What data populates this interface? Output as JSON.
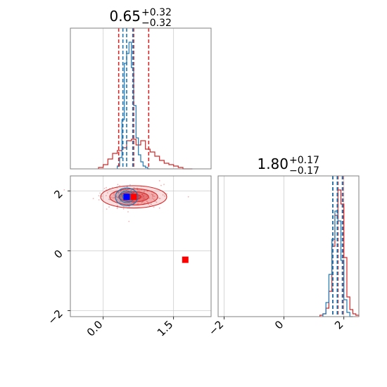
{
  "chart_data": [
    {
      "type": "histogram",
      "panel": "marginal-param-1",
      "title_value": "0.65",
      "title_plus": "+0.32",
      "title_minus": "−0.32",
      "xlim": [
        -0.7,
        2.3
      ],
      "ylim": [
        0,
        1.0
      ],
      "grid": true,
      "series": [
        {
          "color": "#d62728",
          "bins_x": [
            -0.1,
            0.0,
            0.1,
            0.2,
            0.3,
            0.4,
            0.5,
            0.6,
            0.7,
            0.8,
            0.9,
            1.0,
            1.1,
            1.2,
            1.3,
            1.4,
            1.5,
            1.6,
            1.7,
            1.8
          ],
          "heights": [
            0.01,
            0.03,
            0.07,
            0.11,
            0.13,
            0.15,
            0.2,
            0.21,
            0.17,
            0.2,
            0.14,
            0.12,
            0.09,
            0.06,
            0.04,
            0.03,
            0.02,
            0.01,
            0.0,
            0.0
          ],
          "quantiles": [
            0.33,
            0.65,
            0.97
          ]
        },
        {
          "color": "#1f77b4",
          "bins_x": [
            0.3,
            0.35,
            0.4,
            0.45,
            0.5,
            0.55,
            0.6,
            0.65,
            0.7,
            0.75,
            0.8,
            0.85,
            0.9,
            0.95
          ],
          "heights": [
            0.02,
            0.08,
            0.35,
            0.75,
            0.82,
            0.9,
            0.72,
            0.45,
            0.22,
            0.1,
            0.05,
            0.02,
            0.01,
            0.0
          ],
          "quantiles": [
            0.42,
            0.5,
            0.63
          ]
        }
      ]
    },
    {
      "type": "scatter-contour",
      "panel": "joint",
      "xlim": [
        -0.7,
        2.3
      ],
      "ylim": [
        -2.2,
        2.5
      ],
      "x_ticks": [
        0.0,
        1.5
      ],
      "x_tick_labels": [
        "0.0",
        "1.5"
      ],
      "y_ticks": [
        -2,
        0,
        2
      ],
      "y_tick_labels": [
        "−2",
        "0",
        "2"
      ],
      "grid": true,
      "series": [
        {
          "color": "#d62728",
          "center": [
            0.65,
            1.8
          ],
          "contour_sigma": [
            0.32,
            0.17
          ],
          "marker": [
            0.65,
            1.8
          ],
          "outlier_marker": [
            1.75,
            -0.3
          ]
        },
        {
          "color": "#1f77b4",
          "center": [
            0.5,
            1.8
          ],
          "contour_sigma": [
            0.12,
            0.15
          ],
          "marker": [
            0.5,
            1.8
          ]
        }
      ]
    },
    {
      "type": "histogram",
      "panel": "marginal-param-2",
      "title_value": "1.80",
      "title_plus": "+0.17",
      "title_minus": "−0.17",
      "xlim": [
        -2.2,
        2.5
      ],
      "ylim": [
        0,
        1.0
      ],
      "x_ticks": [
        -2,
        0,
        2
      ],
      "x_tick_labels": [
        "−2",
        "0",
        "2"
      ],
      "grid": true,
      "series": [
        {
          "color": "#d62728",
          "bins_x": [
            1.2,
            1.3,
            1.4,
            1.5,
            1.6,
            1.7,
            1.8,
            1.9,
            2.0,
            2.1,
            2.2,
            2.3,
            2.4
          ],
          "heights": [
            0.01,
            0.02,
            0.06,
            0.18,
            0.5,
            0.72,
            0.9,
            0.8,
            0.42,
            0.14,
            0.05,
            0.02,
            0.01
          ],
          "quantiles": [
            1.63,
            1.8,
            1.97
          ]
        },
        {
          "color": "#1f77b4",
          "bins_x": [
            1.3,
            1.4,
            1.5,
            1.6,
            1.7,
            1.8,
            1.9,
            2.0,
            2.1,
            2.2
          ],
          "heights": [
            0.02,
            0.1,
            0.3,
            0.55,
            0.75,
            0.68,
            0.4,
            0.12,
            0.03,
            0.0
          ],
          "quantiles": [
            1.63,
            1.78,
            1.95
          ]
        }
      ]
    }
  ]
}
